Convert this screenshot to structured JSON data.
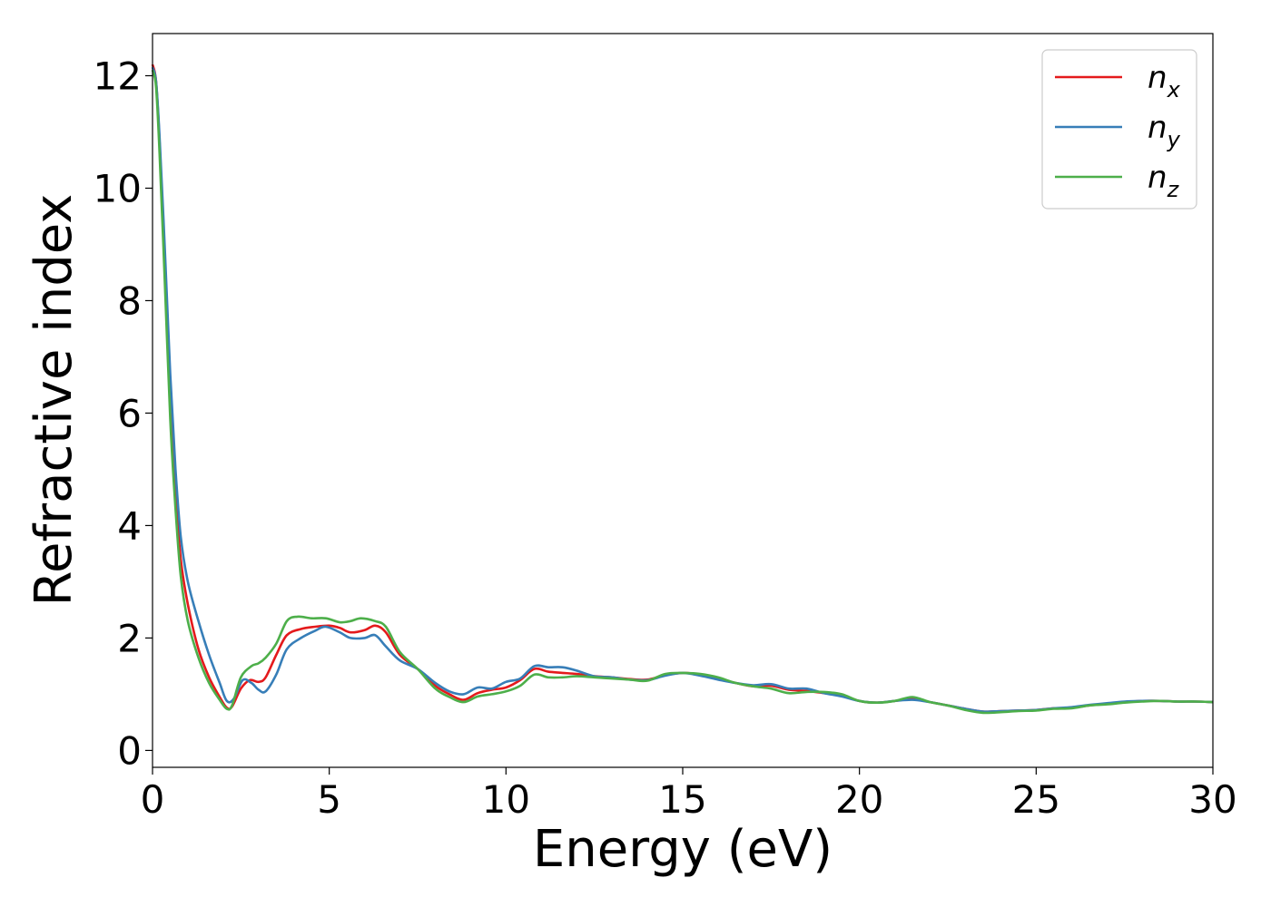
{
  "chart_data": {
    "type": "line",
    "xlabel": "Energy (eV)",
    "ylabel": "Refractive index",
    "xlim": [
      0,
      30
    ],
    "ylim": [
      -0.3,
      12.75
    ],
    "x_ticks": [
      0,
      5,
      10,
      15,
      20,
      25,
      30
    ],
    "y_ticks": [
      0,
      2,
      4,
      6,
      8,
      10,
      12
    ],
    "grid": false,
    "legend_position": "top-right",
    "series": [
      {
        "name": "n",
        "subscript": "x",
        "color": "#e41a1c",
        "points": [
          [
            0,
            12.2
          ],
          [
            0.1,
            11.9
          ],
          [
            0.2,
            10.8
          ],
          [
            0.35,
            8.6
          ],
          [
            0.5,
            6.2
          ],
          [
            0.65,
            4.6
          ],
          [
            0.8,
            3.4
          ],
          [
            1.0,
            2.6
          ],
          [
            1.3,
            1.8
          ],
          [
            1.6,
            1.3
          ],
          [
            1.9,
            0.95
          ],
          [
            2.1,
            0.76
          ],
          [
            2.25,
            0.78
          ],
          [
            2.5,
            1.1
          ],
          [
            2.75,
            1.25
          ],
          [
            3.0,
            1.22
          ],
          [
            3.2,
            1.3
          ],
          [
            3.5,
            1.7
          ],
          [
            3.8,
            2.05
          ],
          [
            4.2,
            2.16
          ],
          [
            4.6,
            2.2
          ],
          [
            5.0,
            2.22
          ],
          [
            5.3,
            2.18
          ],
          [
            5.6,
            2.1
          ],
          [
            6.0,
            2.14
          ],
          [
            6.3,
            2.22
          ],
          [
            6.6,
            2.1
          ],
          [
            7.0,
            1.7
          ],
          [
            7.5,
            1.45
          ],
          [
            8.0,
            1.15
          ],
          [
            8.4,
            1.0
          ],
          [
            8.8,
            0.9
          ],
          [
            9.2,
            1.02
          ],
          [
            9.6,
            1.08
          ],
          [
            10.0,
            1.12
          ],
          [
            10.4,
            1.25
          ],
          [
            10.8,
            1.45
          ],
          [
            11.2,
            1.4
          ],
          [
            11.6,
            1.38
          ],
          [
            12.0,
            1.36
          ],
          [
            12.5,
            1.32
          ],
          [
            13.0,
            1.3
          ],
          [
            13.5,
            1.27
          ],
          [
            14.0,
            1.26
          ],
          [
            14.5,
            1.34
          ],
          [
            15.0,
            1.38
          ],
          [
            15.5,
            1.35
          ],
          [
            16.0,
            1.28
          ],
          [
            16.5,
            1.2
          ],
          [
            17.0,
            1.14
          ],
          [
            17.5,
            1.15
          ],
          [
            18.0,
            1.08
          ],
          [
            18.5,
            1.06
          ],
          [
            19.0,
            1.02
          ],
          [
            19.5,
            0.98
          ],
          [
            20.0,
            0.88
          ],
          [
            20.5,
            0.85
          ],
          [
            21.0,
            0.88
          ],
          [
            21.5,
            0.92
          ],
          [
            22.0,
            0.86
          ],
          [
            22.5,
            0.8
          ],
          [
            23.0,
            0.74
          ],
          [
            23.5,
            0.69
          ],
          [
            24.0,
            0.7
          ],
          [
            24.5,
            0.71
          ],
          [
            25.0,
            0.72
          ],
          [
            25.5,
            0.75
          ],
          [
            26.0,
            0.76
          ],
          [
            26.5,
            0.8
          ],
          [
            27.0,
            0.83
          ],
          [
            27.5,
            0.86
          ],
          [
            28.0,
            0.88
          ],
          [
            28.5,
            0.88
          ],
          [
            29.0,
            0.87
          ],
          [
            29.5,
            0.87
          ],
          [
            30.0,
            0.86
          ]
        ]
      },
      {
        "name": "n",
        "subscript": "y",
        "color": "#377eb8",
        "points": [
          [
            0,
            12.15
          ],
          [
            0.1,
            11.9
          ],
          [
            0.2,
            10.9
          ],
          [
            0.35,
            8.9
          ],
          [
            0.5,
            6.7
          ],
          [
            0.65,
            5.0
          ],
          [
            0.8,
            3.8
          ],
          [
            1.0,
            3.0
          ],
          [
            1.3,
            2.3
          ],
          [
            1.6,
            1.7
          ],
          [
            1.9,
            1.2
          ],
          [
            2.1,
            0.88
          ],
          [
            2.3,
            0.92
          ],
          [
            2.55,
            1.25
          ],
          [
            2.8,
            1.2
          ],
          [
            3.0,
            1.08
          ],
          [
            3.2,
            1.05
          ],
          [
            3.5,
            1.35
          ],
          [
            3.8,
            1.8
          ],
          [
            4.2,
            2.0
          ],
          [
            4.6,
            2.13
          ],
          [
            4.9,
            2.2
          ],
          [
            5.3,
            2.1
          ],
          [
            5.6,
            2.0
          ],
          [
            6.0,
            2.0
          ],
          [
            6.3,
            2.05
          ],
          [
            6.6,
            1.85
          ],
          [
            7.0,
            1.6
          ],
          [
            7.5,
            1.45
          ],
          [
            8.0,
            1.2
          ],
          [
            8.4,
            1.05
          ],
          [
            8.8,
            1.0
          ],
          [
            9.2,
            1.12
          ],
          [
            9.6,
            1.1
          ],
          [
            10.0,
            1.22
          ],
          [
            10.4,
            1.28
          ],
          [
            10.8,
            1.5
          ],
          [
            11.2,
            1.48
          ],
          [
            11.6,
            1.48
          ],
          [
            12.0,
            1.42
          ],
          [
            12.5,
            1.32
          ],
          [
            13.0,
            1.3
          ],
          [
            13.5,
            1.26
          ],
          [
            14.0,
            1.25
          ],
          [
            14.5,
            1.33
          ],
          [
            15.0,
            1.38
          ],
          [
            15.5,
            1.33
          ],
          [
            16.0,
            1.26
          ],
          [
            16.5,
            1.2
          ],
          [
            17.0,
            1.16
          ],
          [
            17.5,
            1.18
          ],
          [
            18.0,
            1.1
          ],
          [
            18.5,
            1.1
          ],
          [
            19.0,
            1.02
          ],
          [
            19.5,
            0.96
          ],
          [
            20.0,
            0.88
          ],
          [
            20.5,
            0.85
          ],
          [
            21.0,
            0.88
          ],
          [
            21.5,
            0.9
          ],
          [
            22.0,
            0.86
          ],
          [
            22.5,
            0.8
          ],
          [
            23.0,
            0.74
          ],
          [
            23.5,
            0.69
          ],
          [
            24.0,
            0.7
          ],
          [
            24.5,
            0.71
          ],
          [
            25.0,
            0.72
          ],
          [
            25.5,
            0.75
          ],
          [
            26.0,
            0.77
          ],
          [
            26.5,
            0.81
          ],
          [
            27.0,
            0.84
          ],
          [
            27.5,
            0.87
          ],
          [
            28.0,
            0.88
          ],
          [
            28.5,
            0.88
          ],
          [
            29.0,
            0.87
          ],
          [
            29.5,
            0.87
          ],
          [
            30.0,
            0.86
          ]
        ]
      },
      {
        "name": "n",
        "subscript": "z",
        "color": "#4daf4a",
        "points": [
          [
            0,
            12.1
          ],
          [
            0.1,
            11.8
          ],
          [
            0.2,
            10.6
          ],
          [
            0.35,
            8.3
          ],
          [
            0.5,
            5.9
          ],
          [
            0.65,
            4.3
          ],
          [
            0.8,
            3.1
          ],
          [
            1.0,
            2.3
          ],
          [
            1.3,
            1.65
          ],
          [
            1.6,
            1.2
          ],
          [
            1.9,
            0.9
          ],
          [
            2.1,
            0.74
          ],
          [
            2.25,
            0.8
          ],
          [
            2.5,
            1.3
          ],
          [
            2.8,
            1.5
          ],
          [
            3.0,
            1.55
          ],
          [
            3.2,
            1.65
          ],
          [
            3.5,
            1.9
          ],
          [
            3.8,
            2.3
          ],
          [
            4.1,
            2.38
          ],
          [
            4.5,
            2.35
          ],
          [
            4.9,
            2.35
          ],
          [
            5.3,
            2.28
          ],
          [
            5.6,
            2.3
          ],
          [
            5.9,
            2.35
          ],
          [
            6.3,
            2.3
          ],
          [
            6.6,
            2.2
          ],
          [
            7.0,
            1.75
          ],
          [
            7.5,
            1.45
          ],
          [
            8.0,
            1.1
          ],
          [
            8.4,
            0.95
          ],
          [
            8.8,
            0.86
          ],
          [
            9.2,
            0.96
          ],
          [
            9.6,
            1.0
          ],
          [
            10.0,
            1.05
          ],
          [
            10.4,
            1.15
          ],
          [
            10.8,
            1.35
          ],
          [
            11.2,
            1.3
          ],
          [
            11.6,
            1.3
          ],
          [
            12.0,
            1.32
          ],
          [
            12.5,
            1.3
          ],
          [
            13.0,
            1.28
          ],
          [
            13.5,
            1.26
          ],
          [
            14.0,
            1.24
          ],
          [
            14.5,
            1.36
          ],
          [
            15.0,
            1.38
          ],
          [
            15.5,
            1.36
          ],
          [
            16.0,
            1.3
          ],
          [
            16.5,
            1.2
          ],
          [
            17.0,
            1.14
          ],
          [
            17.5,
            1.1
          ],
          [
            18.0,
            1.02
          ],
          [
            18.5,
            1.04
          ],
          [
            19.0,
            1.04
          ],
          [
            19.5,
            1.0
          ],
          [
            20.0,
            0.88
          ],
          [
            20.5,
            0.85
          ],
          [
            21.0,
            0.88
          ],
          [
            21.5,
            0.95
          ],
          [
            22.0,
            0.86
          ],
          [
            22.5,
            0.8
          ],
          [
            23.0,
            0.72
          ],
          [
            23.5,
            0.67
          ],
          [
            24.0,
            0.68
          ],
          [
            24.5,
            0.7
          ],
          [
            25.0,
            0.71
          ],
          [
            25.5,
            0.74
          ],
          [
            26.0,
            0.75
          ],
          [
            26.5,
            0.8
          ],
          [
            27.0,
            0.82
          ],
          [
            27.5,
            0.85
          ],
          [
            28.0,
            0.87
          ],
          [
            28.5,
            0.88
          ],
          [
            29.0,
            0.87
          ],
          [
            29.5,
            0.87
          ],
          [
            30.0,
            0.86
          ]
        ]
      }
    ]
  }
}
